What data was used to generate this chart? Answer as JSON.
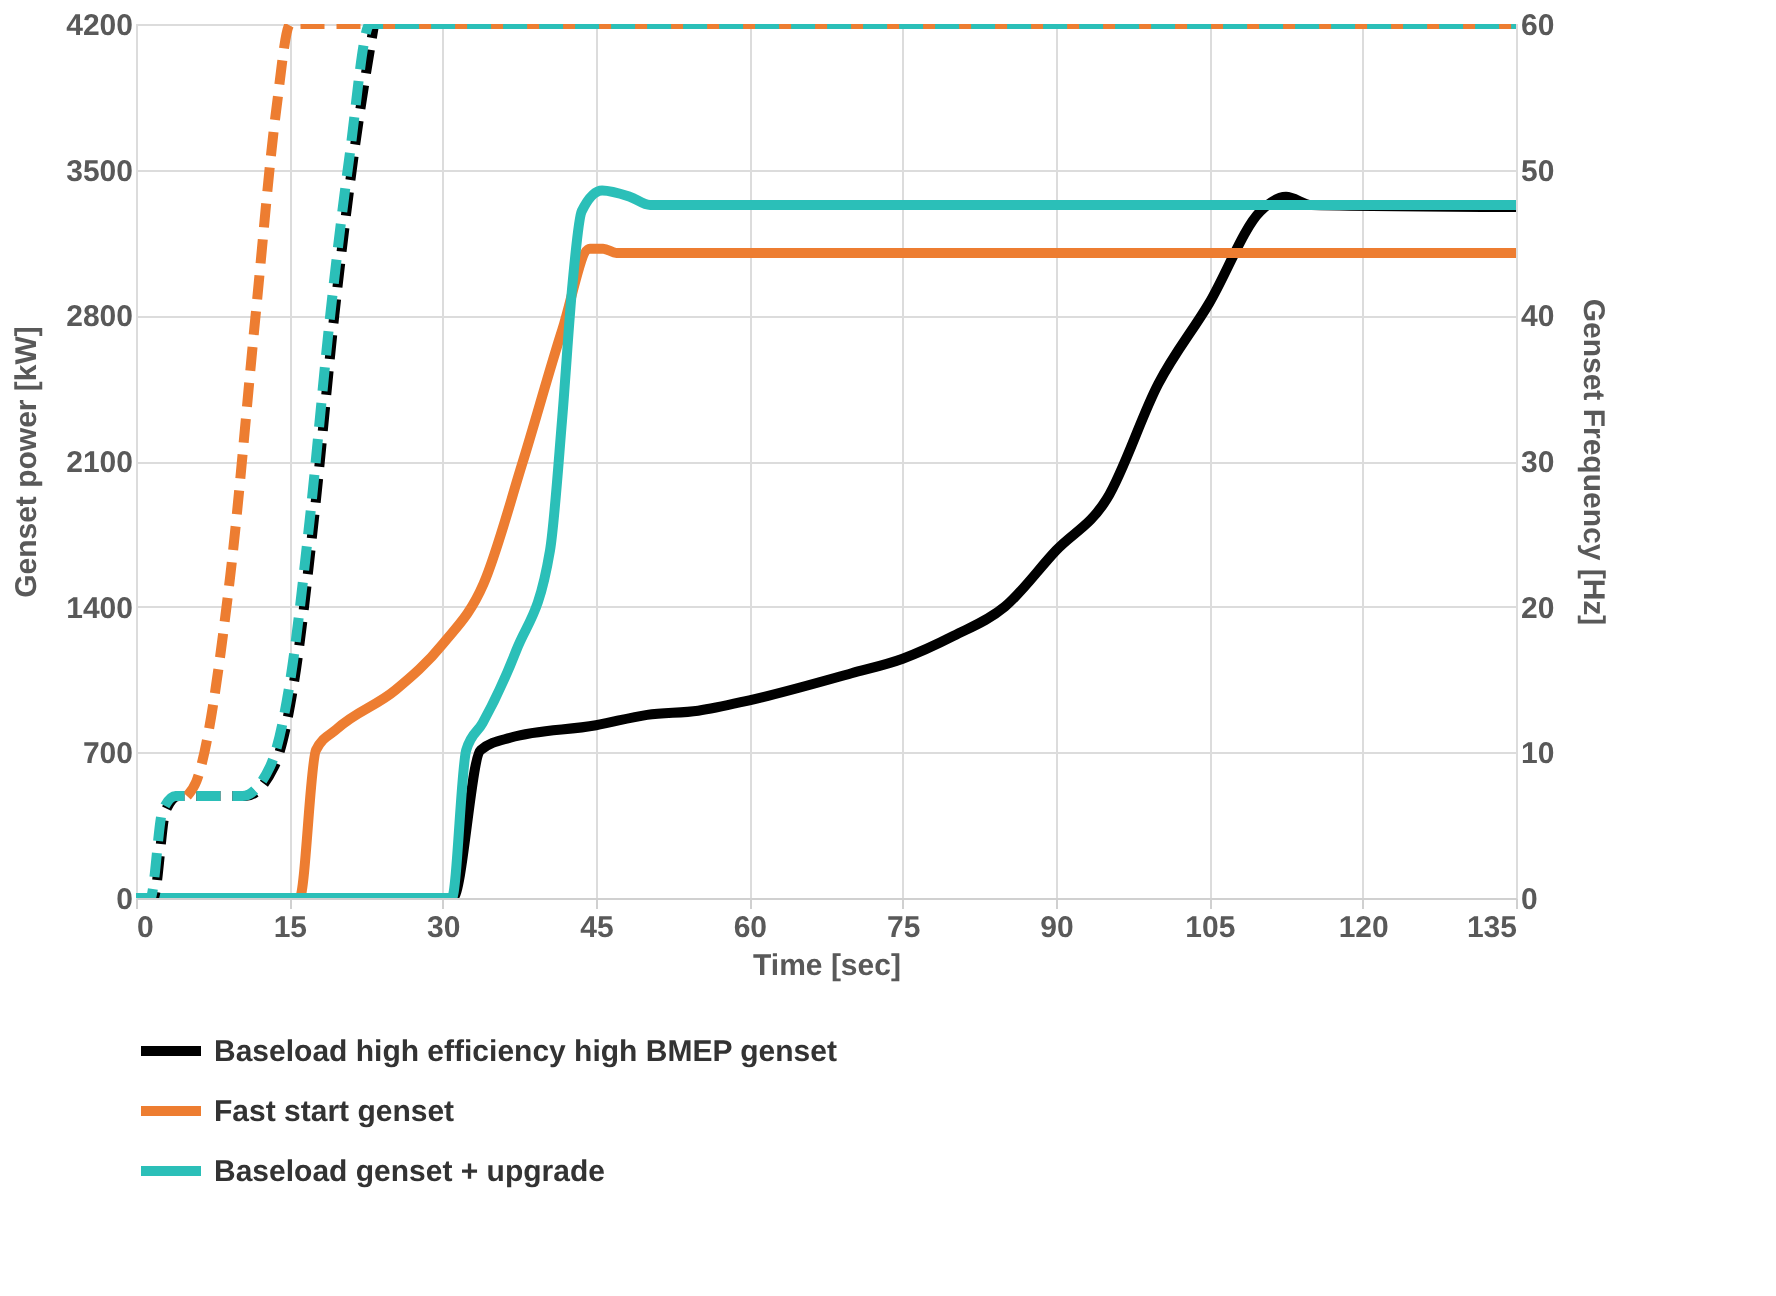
{
  "chart_data": {
    "type": "line",
    "xlabel": "Time [sec]",
    "ylabel": "Genset power [kW]",
    "y2label": "Genset Frequency [Hz]",
    "xlim": [
      0,
      135
    ],
    "xticks": [
      0,
      15,
      30,
      45,
      60,
      75,
      90,
      105,
      120,
      135
    ],
    "ylim": [
      0,
      4200
    ],
    "yticks": [
      0,
      700,
      1400,
      2100,
      2800,
      3500,
      4200
    ],
    "y2lim": [
      0,
      60
    ],
    "y2ticks": [
      0,
      10,
      20,
      30,
      40,
      50,
      60
    ],
    "grid": true,
    "legend": "bottom",
    "marker": "none",
    "series": [
      {
        "color": "#000000",
        "axis": "y2",
        "line_style": "dashed",
        "x": [
          0,
          1.7,
          2.9,
          4.2,
          10.7,
          13.5,
          15.5,
          17.4,
          19.4,
          21.3,
          23.3
        ],
        "values": [
          0,
          0,
          6,
          7,
          7,
          9,
          15,
          26,
          40,
          51,
          60
        ]
      },
      {
        "color": "#ed7d31",
        "axis": "y2",
        "line_style": "dashed",
        "x": [
          5,
          5.9,
          9.2,
          11.7,
          13.7,
          15.1,
          135
        ],
        "values": [
          7,
          8,
          22,
          40,
          54,
          60,
          60
        ]
      },
      {
        "color": "#2bbfb8",
        "axis": "y2",
        "line_style": "dashed",
        "x": [
          0,
          1.4,
          2.6,
          3.9,
          10.4,
          13.1,
          15.1,
          17,
          19,
          20.9,
          22.9,
          135
        ],
        "values": [
          0,
          0,
          6,
          7,
          7,
          9,
          15,
          26,
          40,
          51,
          60,
          60
        ]
      },
      {
        "name": "Baseload high efficiency high BMEP genset",
        "color": "#000000",
        "line_style": "solid",
        "x": [
          0,
          31,
          33.7,
          36.6,
          45,
          50,
          55,
          60,
          70,
          75,
          80,
          85,
          90,
          95,
          100,
          105,
          110,
          112.5,
          115,
          135
        ],
        "values": [
          0,
          0,
          710,
          770,
          830,
          880,
          900,
          950,
          1080,
          1150,
          1260,
          1400,
          1670,
          1920,
          2470,
          2860,
          3300,
          3370,
          3330,
          3320
        ]
      },
      {
        "name": "Fast start genset",
        "color": "#ed7d31",
        "line_style": "solid",
        "x": [
          0,
          16,
          17.6,
          19.6,
          25.4,
          30,
          34,
          37.8,
          41.7,
          44.4,
          45.7,
          47,
          135
        ],
        "values": [
          0,
          0,
          710,
          810,
          1000,
          1220,
          1510,
          2090,
          2730,
          3120,
          3120,
          3100,
          3100
        ]
      },
      {
        "name": "Baseload genset + upgrade",
        "color": "#2bbfb8",
        "line_style": "solid",
        "x": [
          0,
          30.9,
          32.3,
          33.9,
          37.2,
          40.5,
          41.7,
          42.7,
          43.6,
          45.6,
          48.3,
          50.3,
          135
        ],
        "values": [
          0,
          0,
          710,
          840,
          1190,
          1670,
          2310,
          2950,
          3300,
          3400,
          3370,
          3330,
          3330
        ]
      }
    ]
  }
}
